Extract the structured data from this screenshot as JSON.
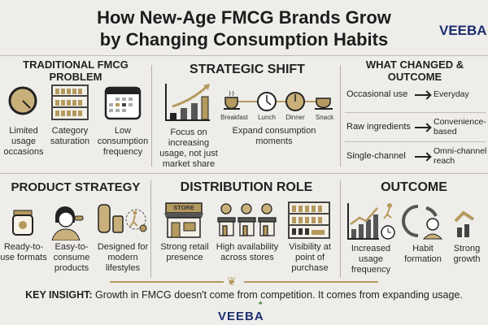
{
  "title_line1": "How New-Age FMCG Brands Grow",
  "title_line2": "by Changing Consumption Habits",
  "logo": "VEEBA",
  "colors": {
    "gold": "#b59a5f",
    "navy": "#1d2f6f",
    "background": "#eeedea"
  },
  "problem": {
    "title": "TRADITIONAL FMCG PROBLEM",
    "items": [
      "Limited usage occasions",
      "Category saturation",
      "Low consumption frequency"
    ]
  },
  "shift": {
    "title": "STRATEGIC SHIFT",
    "focus": "Focus on increasing usage, not just market share",
    "moments": [
      "Breakfast",
      "Lunch",
      "Dinner",
      "Snack"
    ],
    "expand": "Expand consumption moments"
  },
  "changed": {
    "title": "WHAT CHANGED & OUTCOME",
    "rows": [
      {
        "from": "Occasional use",
        "to": "Everyday"
      },
      {
        "from": "Raw ingredients",
        "to": "Convenience-based"
      },
      {
        "from": "Single-channel",
        "to": "Omni-channel reach"
      }
    ]
  },
  "product": {
    "title": "PRODUCT STRATEGY",
    "items": [
      "Ready-to-use formats",
      "Easy-to-consume products",
      "Designed for modern lifestyles"
    ]
  },
  "distribution": {
    "title": "DISTRIBUTION ROLE",
    "store_sign": "STORE",
    "items": [
      "Strong retail presence",
      "High availability across stores",
      "Visibility at point of purchase"
    ]
  },
  "outcome": {
    "title": "OUTCOME",
    "items": [
      "Increased usage frequency",
      "Habit formation",
      "Strong growth"
    ]
  },
  "insight": {
    "label": "KEY INSIGHT:",
    "text": " Growth in FMCG doesn't come from competition. It comes from expanding usage."
  }
}
